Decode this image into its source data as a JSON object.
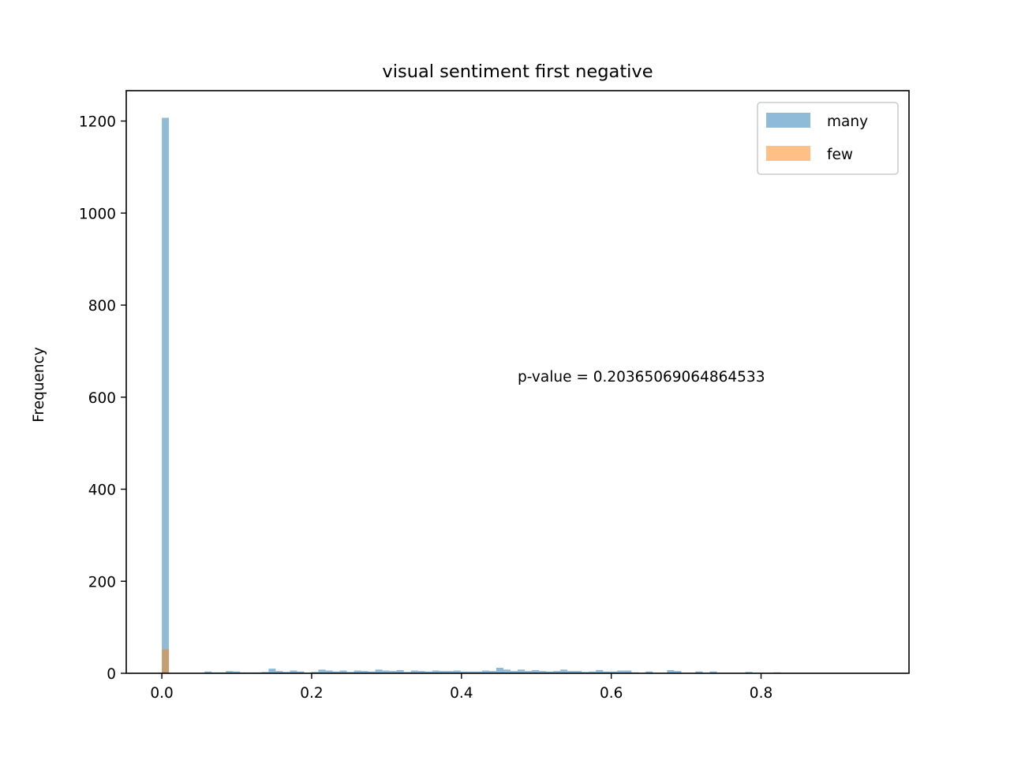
{
  "chart_data": {
    "type": "bar",
    "title": "visual sentiment first negative",
    "xlabel": "",
    "ylabel": "Frequency",
    "xlim": [
      -0.0475,
      0.9975
    ],
    "ylim": [
      0,
      1266
    ],
    "x_ticks": [
      "0.0",
      "0.2",
      "0.4",
      "0.6",
      "0.8"
    ],
    "x_tick_values": [
      0.0,
      0.2,
      0.4,
      0.6,
      0.8
    ],
    "y_ticks": [
      "0",
      "200",
      "400",
      "600",
      "800",
      "1000",
      "1200"
    ],
    "y_tick_values": [
      0,
      200,
      400,
      600,
      800,
      1000,
      1200
    ],
    "bin_edges_start": 0.0,
    "bin_width": 0.0095,
    "grid": false,
    "legend_position": "upper right",
    "annotation": "p-value = 0.20365069064864533",
    "series": [
      {
        "name": "many",
        "color": "#1f77b4",
        "alpha": 0.5,
        "values": [
          1207,
          0,
          0,
          0,
          0,
          0,
          4,
          2,
          2,
          5,
          4,
          2,
          2,
          2,
          3,
          10,
          5,
          3,
          6,
          4,
          1,
          3,
          8,
          6,
          4,
          6,
          3,
          6,
          5,
          4,
          8,
          6,
          5,
          7,
          3,
          6,
          5,
          4,
          6,
          5,
          5,
          6,
          4,
          4,
          4,
          6,
          5,
          12,
          8,
          5,
          8,
          5,
          7,
          5,
          4,
          5,
          8,
          5,
          5,
          3,
          4,
          7,
          4,
          4,
          6,
          6,
          2,
          0,
          4,
          0,
          0,
          7,
          5,
          0,
          0,
          4,
          0,
          4,
          0,
          0,
          0,
          0,
          3,
          0,
          0,
          0,
          2,
          0,
          0,
          0,
          0,
          0,
          0,
          0,
          0,
          0,
          0,
          0,
          0,
          0
        ]
      },
      {
        "name": "few",
        "color": "#ff7f0e",
        "alpha": 0.5,
        "values": [
          52,
          0,
          0,
          0,
          0,
          0,
          0,
          0,
          0,
          0,
          0,
          0,
          0,
          0,
          0,
          0,
          0,
          0,
          0,
          0,
          0,
          0,
          0,
          0,
          0,
          0,
          0,
          0,
          0,
          0,
          0,
          0,
          0,
          0,
          0,
          0,
          0,
          0,
          0,
          0,
          0,
          0,
          0,
          0,
          0,
          0,
          0,
          0,
          0,
          0,
          0,
          0,
          0,
          0,
          0,
          0,
          0,
          0,
          0,
          0,
          0,
          0,
          0,
          0,
          0,
          0,
          0,
          0,
          0,
          0,
          0,
          0,
          0,
          0,
          0,
          0,
          0,
          0,
          0,
          0,
          0,
          0,
          0,
          0,
          0,
          0,
          0,
          0,
          0,
          0,
          0,
          0,
          0,
          0,
          0,
          0,
          0,
          0,
          0,
          0
        ]
      }
    ]
  }
}
